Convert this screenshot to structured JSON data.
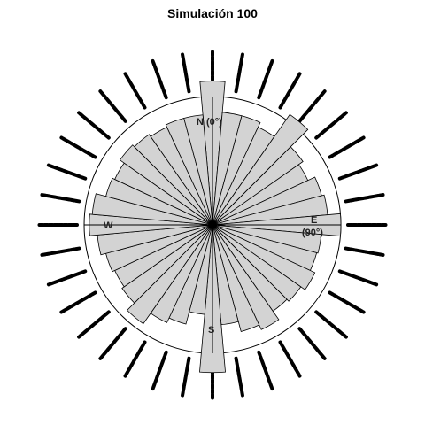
{
  "chart_data": {
    "type": "rose",
    "title": "Simulación 100",
    "sector_width_deg": 10,
    "directions_deg": [
      0,
      10,
      20,
      30,
      40,
      50,
      60,
      70,
      80,
      90,
      100,
      110,
      120,
      130,
      140,
      150,
      160,
      170,
      180,
      190,
      200,
      210,
      220,
      230,
      240,
      250,
      260,
      270,
      280,
      290,
      300,
      310,
      320,
      330,
      340,
      350
    ],
    "values": [
      1.12,
      0.88,
      0.88,
      0.84,
      1.05,
      0.86,
      0.82,
      0.88,
      0.9,
      1.0,
      0.85,
      0.84,
      0.88,
      0.84,
      0.82,
      0.9,
      0.86,
      0.78,
      1.15,
      0.7,
      0.8,
      0.84,
      0.94,
      0.86,
      0.84,
      0.86,
      0.9,
      0.96,
      0.94,
      0.86,
      0.84,
      0.88,
      0.86,
      0.84,
      0.86,
      0.86
    ],
    "reference_circle_value": 1.0,
    "raw_data_ticks_deg": [
      0,
      10,
      20,
      30,
      40,
      50,
      60,
      70,
      80,
      90,
      100,
      110,
      120,
      130,
      140,
      150,
      160,
      170,
      180,
      190,
      200,
      210,
      220,
      230,
      240,
      250,
      260,
      270,
      280,
      290,
      300,
      310,
      320,
      330,
      340,
      350
    ],
    "compass_labels": {
      "north": "N (0°)",
      "east": "E",
      "east_sub": "(90°)",
      "south": "S",
      "west": "W"
    },
    "colors": {
      "petal_fill": "#d3d3d3",
      "petal_stroke": "#000000",
      "axis": "#000000",
      "tick": "#000000"
    },
    "grid": false,
    "legend": "none"
  }
}
